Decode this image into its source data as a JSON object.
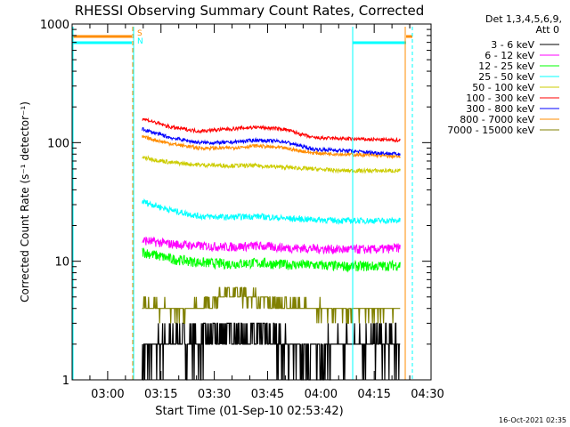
{
  "chart_data": {
    "type": "line",
    "title": "RHESSI Observing Summary Count Rates, Corrected",
    "xlabel": "Start Time (01-Sep-10 02:53:42)",
    "ylabel": "Corrected Count Rate (s⁻¹ detector⁻¹)",
    "yscale": "log",
    "ylim": [
      1,
      1000
    ],
    "xlim_minutes": [
      -3.7,
      97.3
    ],
    "yticks": [
      {
        "value": 1,
        "label": "1"
      },
      {
        "value": 10,
        "label": "10"
      },
      {
        "value": 100,
        "label": "100"
      },
      {
        "value": 1000,
        "label": "1000"
      }
    ],
    "xticks": [
      {
        "minute": 6.3,
        "label": "03:00"
      },
      {
        "minute": 21.3,
        "label": "03:15"
      },
      {
        "minute": 36.3,
        "label": "03:30"
      },
      {
        "minute": 51.3,
        "label": "03:45"
      },
      {
        "minute": 66.3,
        "label": "04:00"
      },
      {
        "minute": 81.3,
        "label": "04:15"
      },
      {
        "minute": 96.3,
        "label": "04:30"
      }
    ],
    "legend": {
      "position": "outside-right",
      "header": [
        "Det 1,3,4,5,6,9,",
        "Att 0"
      ]
    },
    "series": [
      {
        "name": "3 - 6 keV",
        "color": "#000000",
        "x": [
          16,
          24,
          32,
          40,
          48,
          56,
          64,
          72,
          82,
          88.7
        ],
        "y": [
          1.6,
          2.2,
          2.0,
          2.6,
          2.3,
          2.0,
          1.8,
          2.0,
          2.1,
          2.1
        ]
      },
      {
        "name": "6 - 12 keV",
        "color": "#ff00ff",
        "x": [
          16,
          24,
          32,
          40,
          48,
          56,
          64,
          72,
          82,
          88.7
        ],
        "y": [
          15,
          14,
          13.5,
          13.2,
          13.5,
          13,
          12.8,
          12.6,
          12.6,
          13
        ]
      },
      {
        "name": "12 - 25 keV",
        "color": "#00ff00",
        "x": [
          16,
          24,
          32,
          40,
          48,
          56,
          64,
          72,
          82,
          88.7
        ],
        "y": [
          12,
          10.5,
          9.8,
          9.5,
          9.7,
          9.4,
          9.3,
          9.1,
          9.1,
          9.3
        ]
      },
      {
        "name": "25 - 50 keV",
        "color": "#00ffff",
        "x": [
          16,
          24,
          32,
          40,
          48,
          56,
          64,
          72,
          82,
          88.7
        ],
        "y": [
          32,
          27,
          24,
          23.5,
          24,
          23,
          22.5,
          22,
          22,
          22
        ]
      },
      {
        "name": "50 - 100 keV",
        "color": "#cccc00",
        "x": [
          16,
          24,
          32,
          40,
          48,
          56,
          64,
          72,
          82,
          88.7
        ],
        "y": [
          75,
          68,
          65,
          64,
          64,
          62,
          60,
          58,
          58,
          58
        ]
      },
      {
        "name": "100 - 300 keV",
        "color": "#ff0000",
        "x": [
          16,
          24,
          32,
          40,
          48,
          56,
          64,
          72,
          82,
          88.7
        ],
        "y": [
          160,
          135,
          125,
          130,
          135,
          130,
          110,
          108,
          106,
          105
        ]
      },
      {
        "name": "300 - 800 keV",
        "color": "#0000ff",
        "x": [
          16,
          24,
          32,
          40,
          48,
          56,
          64,
          72,
          82,
          88.7
        ],
        "y": [
          130,
          110,
          100,
          100,
          105,
          102,
          88,
          86,
          82,
          80
        ]
      },
      {
        "name": "800 - 7000 keV",
        "color": "#ff8c00",
        "x": [
          16,
          24,
          32,
          40,
          48,
          56,
          64,
          72,
          82,
          88.7
        ],
        "y": [
          112,
          98,
          90,
          90,
          94,
          90,
          82,
          80,
          78,
          76
        ]
      },
      {
        "name": "7000 - 15000 keV",
        "color": "#808000",
        "x": [
          16,
          24,
          32,
          40,
          48,
          56,
          64,
          72,
          82,
          88.7
        ],
        "y": [
          4.2,
          3.9,
          4.0,
          5.5,
          5.0,
          4.2,
          4.0,
          3.9,
          3.9,
          3.9
        ]
      }
    ],
    "annotations": [
      {
        "text": "S",
        "color": "#ff8c00"
      },
      {
        "text": "N",
        "color": "#00ffff"
      }
    ]
  },
  "footer": {
    "timestamp": "16-Oct-2021 02:35"
  }
}
